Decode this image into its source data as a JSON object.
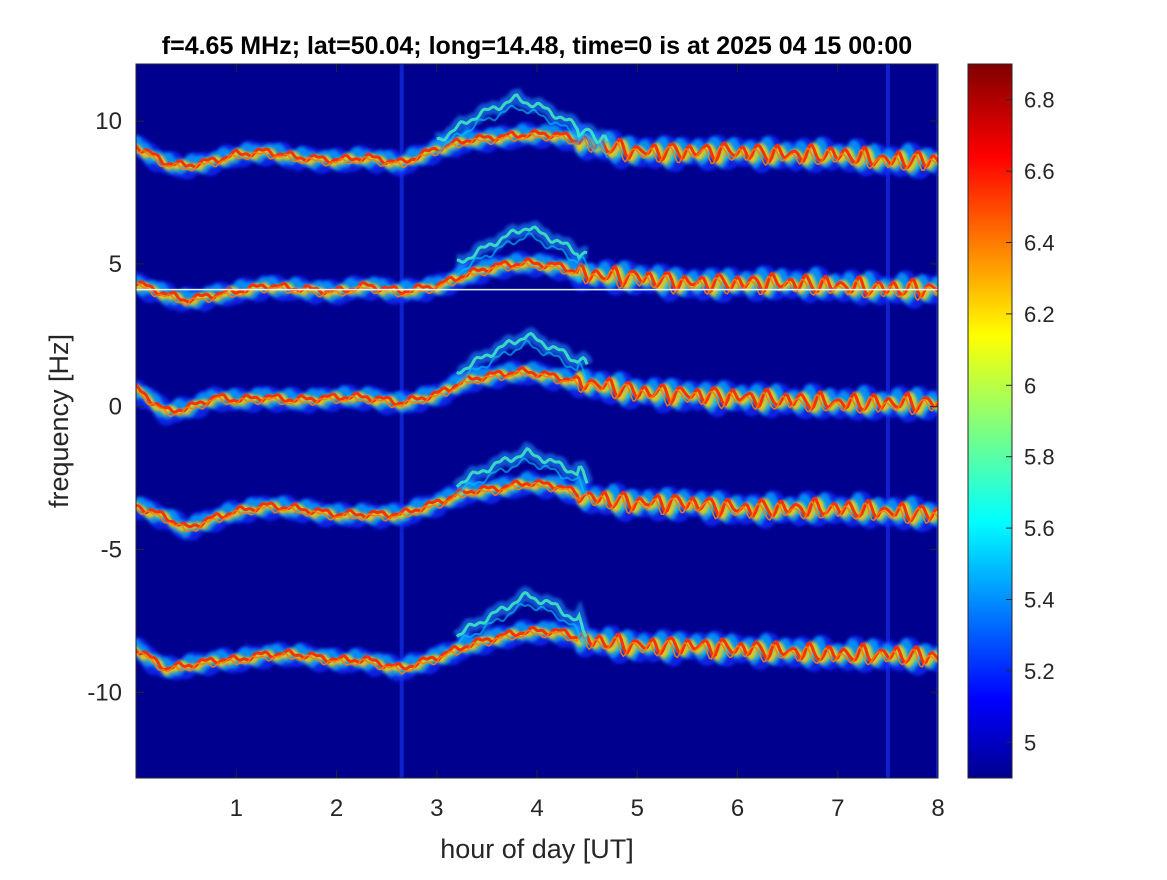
{
  "chart_data": {
    "type": "heatmap",
    "title": "f=4.65 MHz;  lat=50.04; long=14.48, time=0 is at 2025 04 15 00:00",
    "xlabel": "hour of day [UT]",
    "ylabel": "frequency [Hz]",
    "xlim": [
      0,
      8
    ],
    "ylim": [
      -13,
      12
    ],
    "xticks": [
      "1",
      "2",
      "3",
      "4",
      "5",
      "6",
      "7",
      "8"
    ],
    "yticks": [
      "-10",
      "-5",
      "0",
      "5",
      "10"
    ],
    "colorbar": {
      "range": [
        4.9,
        6.9
      ],
      "ticks": [
        "5",
        "5.2",
        "5.4",
        "5.6",
        "5.8",
        "6",
        "6.2",
        "6.4",
        "6.6",
        "6.8"
      ],
      "colormap": "jet"
    },
    "background_color": "#00008f",
    "series": [
      {
        "x": [
          0,
          0.3,
          0.5,
          0.8,
          1.0,
          1.3,
          1.6,
          2.0,
          2.3,
          2.65,
          3.0,
          3.3,
          3.6,
          3.9,
          4.2,
          4.5,
          5.0,
          5.5,
          6.0,
          6.5,
          7.0,
          7.5,
          8.0
        ],
        "values": [
          9.1,
          8.5,
          8.4,
          8.6,
          8.8,
          8.9,
          8.7,
          8.6,
          8.7,
          8.5,
          9.0,
          9.3,
          9.4,
          9.5,
          9.5,
          9.2,
          8.9,
          8.9,
          8.9,
          8.8,
          8.8,
          8.6,
          8.6
        ]
      },
      {
        "x": [
          0,
          0.3,
          0.5,
          0.8,
          1.0,
          1.3,
          1.6,
          2.0,
          2.3,
          2.65,
          3.0,
          3.3,
          3.6,
          3.9,
          4.2,
          4.5,
          5.0,
          5.5,
          6.0,
          6.5,
          7.0,
          7.5,
          8.0
        ],
        "values": [
          4.3,
          3.9,
          3.7,
          3.9,
          4.0,
          4.2,
          4.1,
          4.0,
          4.2,
          4.0,
          4.2,
          4.6,
          4.9,
          5.0,
          4.9,
          4.6,
          4.5,
          4.3,
          4.3,
          4.3,
          4.2,
          4.1,
          4.1
        ]
      },
      {
        "x": [
          0,
          0.3,
          0.5,
          0.8,
          1.0,
          1.3,
          1.6,
          2.0,
          2.3,
          2.65,
          3.0,
          3.3,
          3.6,
          3.9,
          4.2,
          4.5,
          5.0,
          5.5,
          6.0,
          6.5,
          7.0,
          7.5,
          8.0
        ],
        "values": [
          0.6,
          -0.2,
          -0.1,
          0.3,
          0.2,
          0.3,
          0.2,
          0.3,
          0.3,
          0.1,
          0.4,
          0.9,
          1.1,
          1.2,
          1.0,
          0.8,
          0.5,
          0.4,
          0.3,
          0.2,
          0.1,
          0.1,
          0.1
        ]
      },
      {
        "x": [
          0,
          0.3,
          0.5,
          0.8,
          1.0,
          1.3,
          1.6,
          2.0,
          2.3,
          2.65,
          3.0,
          3.3,
          3.6,
          3.9,
          4.2,
          4.5,
          5.0,
          5.5,
          6.0,
          6.5,
          7.0,
          7.5,
          8.0
        ],
        "values": [
          -3.5,
          -3.9,
          -4.3,
          -3.9,
          -3.7,
          -3.5,
          -3.6,
          -3.8,
          -3.8,
          -3.8,
          -3.4,
          -3.0,
          -2.9,
          -2.7,
          -2.8,
          -3.2,
          -3.4,
          -3.4,
          -3.6,
          -3.6,
          -3.6,
          -3.7,
          -3.8
        ]
      },
      {
        "x": [
          0,
          0.3,
          0.5,
          0.8,
          1.0,
          1.3,
          1.6,
          2.0,
          2.3,
          2.65,
          3.0,
          3.3,
          3.6,
          3.9,
          4.2,
          4.5,
          5.0,
          5.5,
          6.0,
          6.5,
          7.0,
          7.5,
          8.0
        ],
        "values": [
          -8.5,
          -9.2,
          -9.1,
          -8.9,
          -8.9,
          -8.7,
          -8.7,
          -8.9,
          -8.9,
          -9.2,
          -8.8,
          -8.4,
          -8.1,
          -7.9,
          -7.9,
          -8.2,
          -8.4,
          -8.4,
          -8.5,
          -8.6,
          -8.7,
          -8.7,
          -8.8
        ]
      }
    ],
    "upper_branches": [
      {
        "x": [
          3.0,
          3.4,
          3.8,
          4.1,
          4.4,
          4.7
        ],
        "values": [
          9.3,
          10.2,
          10.8,
          10.4,
          9.8,
          9.2
        ]
      },
      {
        "x": [
          3.2,
          3.6,
          3.9,
          4.2,
          4.5
        ],
        "values": [
          5.0,
          5.8,
          6.3,
          5.8,
          5.2
        ]
      },
      {
        "x": [
          3.2,
          3.6,
          3.9,
          4.2,
          4.5
        ],
        "values": [
          1.2,
          2.0,
          2.5,
          2.0,
          1.4
        ]
      },
      {
        "x": [
          3.2,
          3.6,
          3.9,
          4.2,
          4.5
        ],
        "values": [
          -2.7,
          -2.0,
          -1.6,
          -2.0,
          -2.5
        ]
      },
      {
        "x": [
          3.2,
          3.6,
          3.9,
          4.2,
          4.5
        ],
        "values": [
          -8.0,
          -7.2,
          -6.6,
          -7.0,
          -7.8
        ]
      }
    ],
    "constant_line_hz": 4.1,
    "vertical_streaks_hour": [
      2.65,
      7.5,
      8.0
    ]
  }
}
